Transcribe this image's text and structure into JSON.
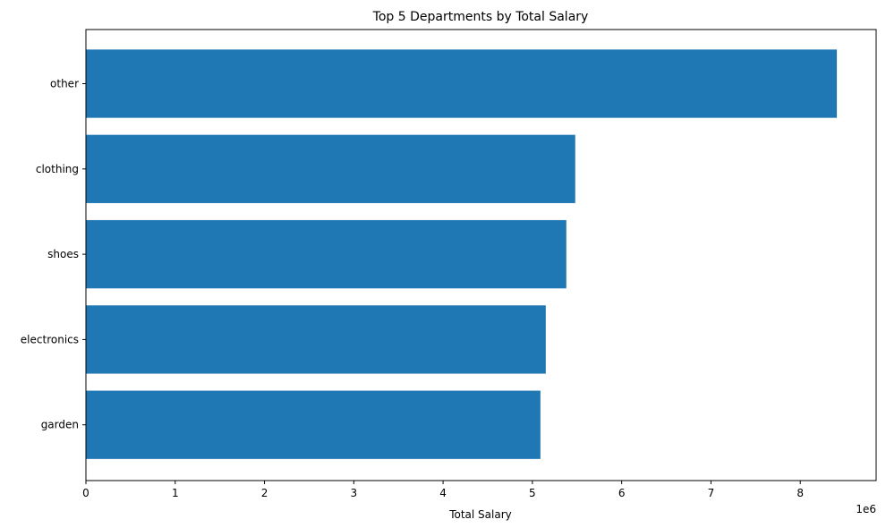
{
  "chart_data": {
    "type": "bar",
    "orientation": "horizontal",
    "title": "Top 5 Departments by Total Salary",
    "xlabel": "Total Salary",
    "ylabel": "",
    "x_offset_label": "1e6",
    "xlim": [
      0,
      8.85
    ],
    "x_ticks": [
      0,
      1,
      2,
      3,
      4,
      5,
      6,
      7,
      8
    ],
    "x_unit_scale": 1000000,
    "categories": [
      "other",
      "clothing",
      "shoes",
      "electronics",
      "garden"
    ],
    "values": [
      8410000,
      5480000,
      5380000,
      5150000,
      5090000
    ],
    "bar_color": "#1f77b4",
    "grid": false,
    "legend": "none"
  }
}
